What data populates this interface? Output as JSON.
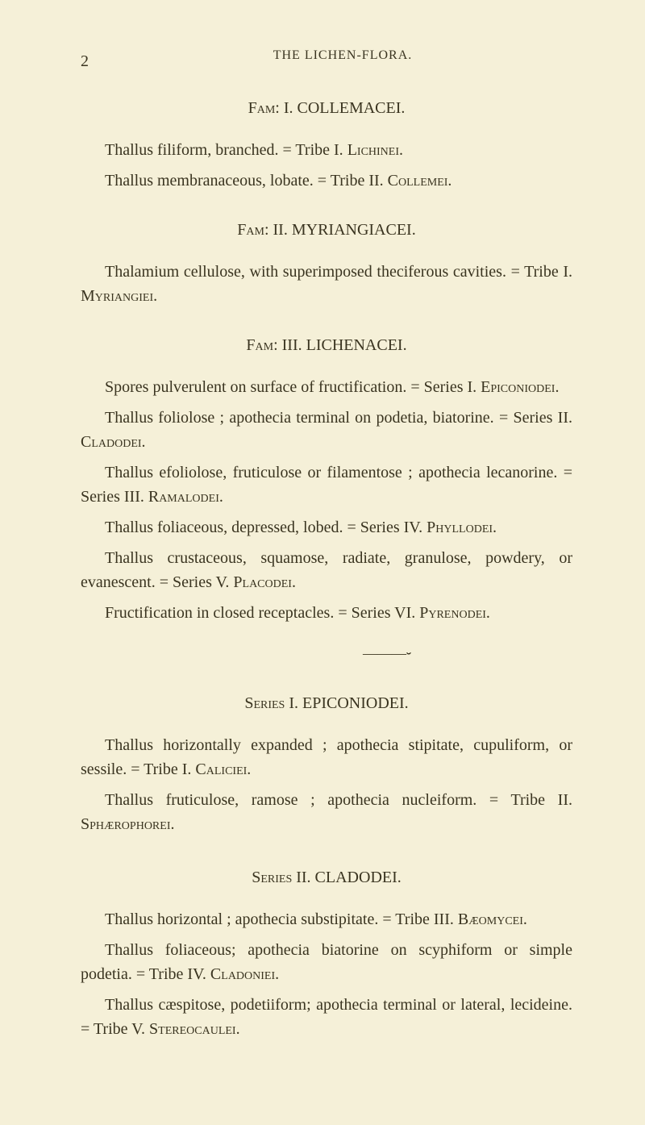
{
  "page": {
    "number": "2",
    "runningHeader": "THE LICHEN-FLORA."
  },
  "colors": {
    "background": "#f5f0d8",
    "text": "#3a3420"
  },
  "typography": {
    "bodySize": 20,
    "headerSize": 16,
    "lineHeight": 1.5,
    "fontFamily": "Times New Roman"
  },
  "sections": {
    "fam1": {
      "heading": "Fam: I. COLLEMACEI.",
      "line1_a": "Thallus filiform, branched. = Tribe I. ",
      "line1_b": "Lichinei.",
      "line2_a": "Thallus membranaceous, lobate. = Tribe II. ",
      "line2_b": "Collemei."
    },
    "fam2": {
      "heading": "Fam: II. MYRIANGIACEI.",
      "line1_a": "Thalamium cellulose, with superimposed theciferous cavities. = Tribe I. ",
      "line1_b": "Myriangiei."
    },
    "fam3": {
      "heading": "Fam: III. LICHENACEI.",
      "p1_a": "Spores pulverulent on surface of fructification. = Series I. ",
      "p1_b": "Epiconiodei.",
      "p2_a": "Thallus foliolose ; apothecia terminal on podetia, biatorine. = Series II. ",
      "p2_b": "Cladodei.",
      "p3_a": "Thallus efoliolose, fruticulose or filamentose ; apothecia lecanorine. = Series III. ",
      "p3_b": "Ramalodei.",
      "p4_a": "Thallus foliaceous, depressed, lobed. = Series IV. ",
      "p4_b": "Phyllodei.",
      "p5_a": "Thallus crustaceous, squamose, radiate, granulose, powdery, or evanescent. = Series V. ",
      "p5_b": "Placodei.",
      "p6_a": "Fructification in closed receptacles. = Series VI. ",
      "p6_b": "Pyrenodei."
    },
    "series1": {
      "heading": "Series I. EPICONIODEI.",
      "p1_a": "Thallus horizontally expanded ; apothecia stipitate, cupuliform, or sessile. = Tribe I. ",
      "p1_b": "Caliciei.",
      "p2_a": "Thallus fruticulose, ramose ; apothecia nucleiform. = Tribe II. ",
      "p2_b": "Sphærophorei."
    },
    "series2": {
      "heading": "Series II. CLADODEI.",
      "p1_a": "Thallus horizontal ; apothecia substipitate. = Tribe III. ",
      "p1_b": "Bæomycei.",
      "p2_a": "Thallus foliaceous; apothecia biatorine on scyphiform or simple podetia. = Tribe IV. ",
      "p2_b": "Cladoniei.",
      "p3_a": "Thallus cæspitose, podetiiform; apothecia terminal or lateral, lecideine. = Tribe V. ",
      "p3_b": "Stereocaulei."
    }
  },
  "divider": "———⏑"
}
